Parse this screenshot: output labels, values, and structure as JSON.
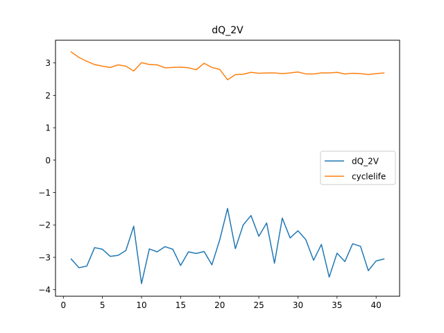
{
  "chart_data": {
    "type": "line",
    "title": "dQ_2V",
    "xlabel": "",
    "ylabel": "",
    "xlim": [
      -1,
      43
    ],
    "ylim": [
      -4.2,
      3.7
    ],
    "x_ticks": [
      0,
      5,
      10,
      15,
      20,
      25,
      30,
      35,
      40
    ],
    "y_ticks": [
      -4,
      -3,
      -2,
      -1,
      0,
      1,
      2,
      3
    ],
    "y_tick_labels": [
      "−4",
      "−3",
      "−2",
      "−1",
      "0",
      "1",
      "2",
      "3"
    ],
    "grid": false,
    "legend_position": "center-right",
    "x": [
      1,
      2,
      3,
      4,
      5,
      6,
      7,
      8,
      9,
      10,
      11,
      12,
      13,
      14,
      15,
      16,
      17,
      18,
      19,
      20,
      21,
      22,
      23,
      24,
      25,
      26,
      27,
      28,
      29,
      30,
      31,
      32,
      33,
      34,
      35,
      36,
      37,
      38,
      39,
      40,
      41
    ],
    "series": [
      {
        "name": "dQ_2V",
        "color": "#1f77b4",
        "values": [
          -3.05,
          -3.32,
          -3.27,
          -2.7,
          -2.75,
          -2.97,
          -2.94,
          -2.79,
          -2.04,
          -3.81,
          -2.74,
          -2.83,
          -2.67,
          -2.75,
          -3.25,
          -2.83,
          -2.88,
          -2.82,
          -3.23,
          -2.46,
          -1.49,
          -2.73,
          -2.0,
          -1.71,
          -2.35,
          -1.94,
          -3.18,
          -1.79,
          -2.4,
          -2.18,
          -2.45,
          -3.09,
          -2.6,
          -3.61,
          -2.87,
          -3.13,
          -2.58,
          -2.66,
          -3.41,
          -3.11,
          -3.05
        ]
      },
      {
        "name": "cyclelife",
        "color": "#ff7f0e",
        "values": [
          3.34,
          3.17,
          3.05,
          2.95,
          2.9,
          2.86,
          2.94,
          2.9,
          2.75,
          3.01,
          2.95,
          2.94,
          2.85,
          2.86,
          2.87,
          2.85,
          2.79,
          2.99,
          2.86,
          2.8,
          2.48,
          2.64,
          2.65,
          2.71,
          2.68,
          2.69,
          2.69,
          2.67,
          2.69,
          2.72,
          2.66,
          2.66,
          2.69,
          2.69,
          2.71,
          2.66,
          2.68,
          2.67,
          2.64,
          2.67,
          2.69
        ]
      }
    ]
  }
}
